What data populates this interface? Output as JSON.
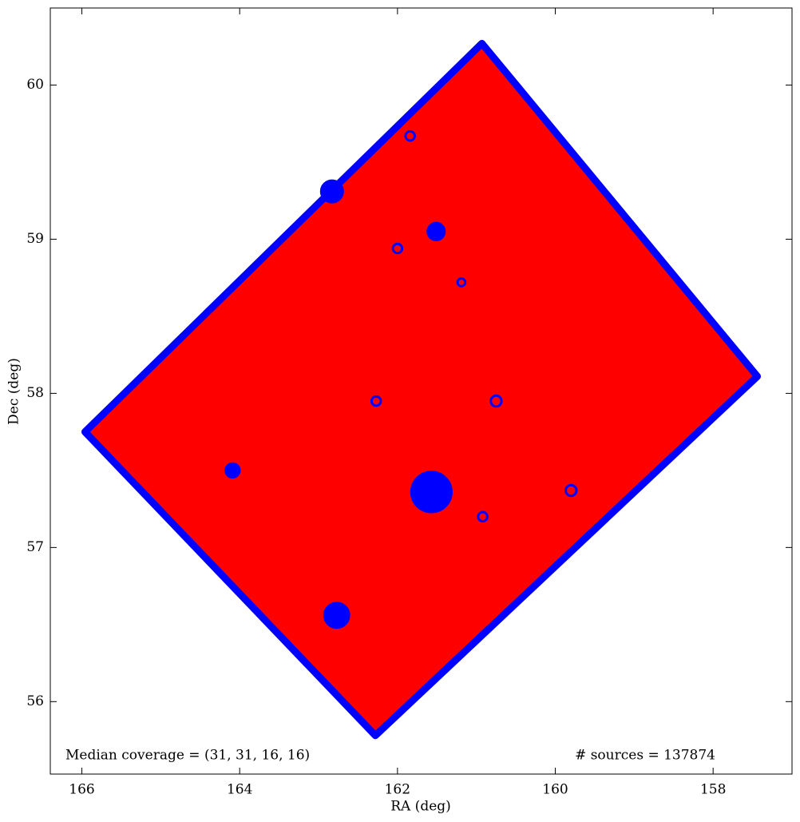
{
  "chart_data": {
    "type": "coverage",
    "x_label": "RA (deg)",
    "y_label": "Dec (deg)",
    "xlim": [
      166.4,
      157.0
    ],
    "ylim": [
      55.53,
      60.5
    ],
    "xticks": [
      166,
      164,
      162,
      160,
      158
    ],
    "yticks": [
      56,
      57,
      58,
      59,
      60
    ],
    "footprint": {
      "x": [
        160.93,
        157.44,
        162.28,
        165.96
      ],
      "y": [
        60.27,
        58.11,
        55.78,
        57.75
      ],
      "color": "#ff0000",
      "edge_color": "#0000ff"
    },
    "masked_sources": {
      "color": "#0000ff",
      "x": [
        161.57,
        162.77,
        162.83,
        161.51,
        164.09,
        162.27,
        160.75,
        162.0,
        161.19,
        159.8,
        160.92,
        161.84
      ],
      "y": [
        57.36,
        56.56,
        59.31,
        59.05,
        57.5,
        57.95,
        57.95,
        58.94,
        58.72,
        57.37,
        57.2,
        59.67
      ],
      "r": [
        0.13,
        0.08,
        0.07,
        0.055,
        0.045,
        0.03,
        0.035,
        0.03,
        0.025,
        0.035,
        0.03,
        0.03
      ]
    },
    "annotations": [
      "Median coverage = (31, 31, 16, 16)",
      "# sources = 137874"
    ]
  }
}
